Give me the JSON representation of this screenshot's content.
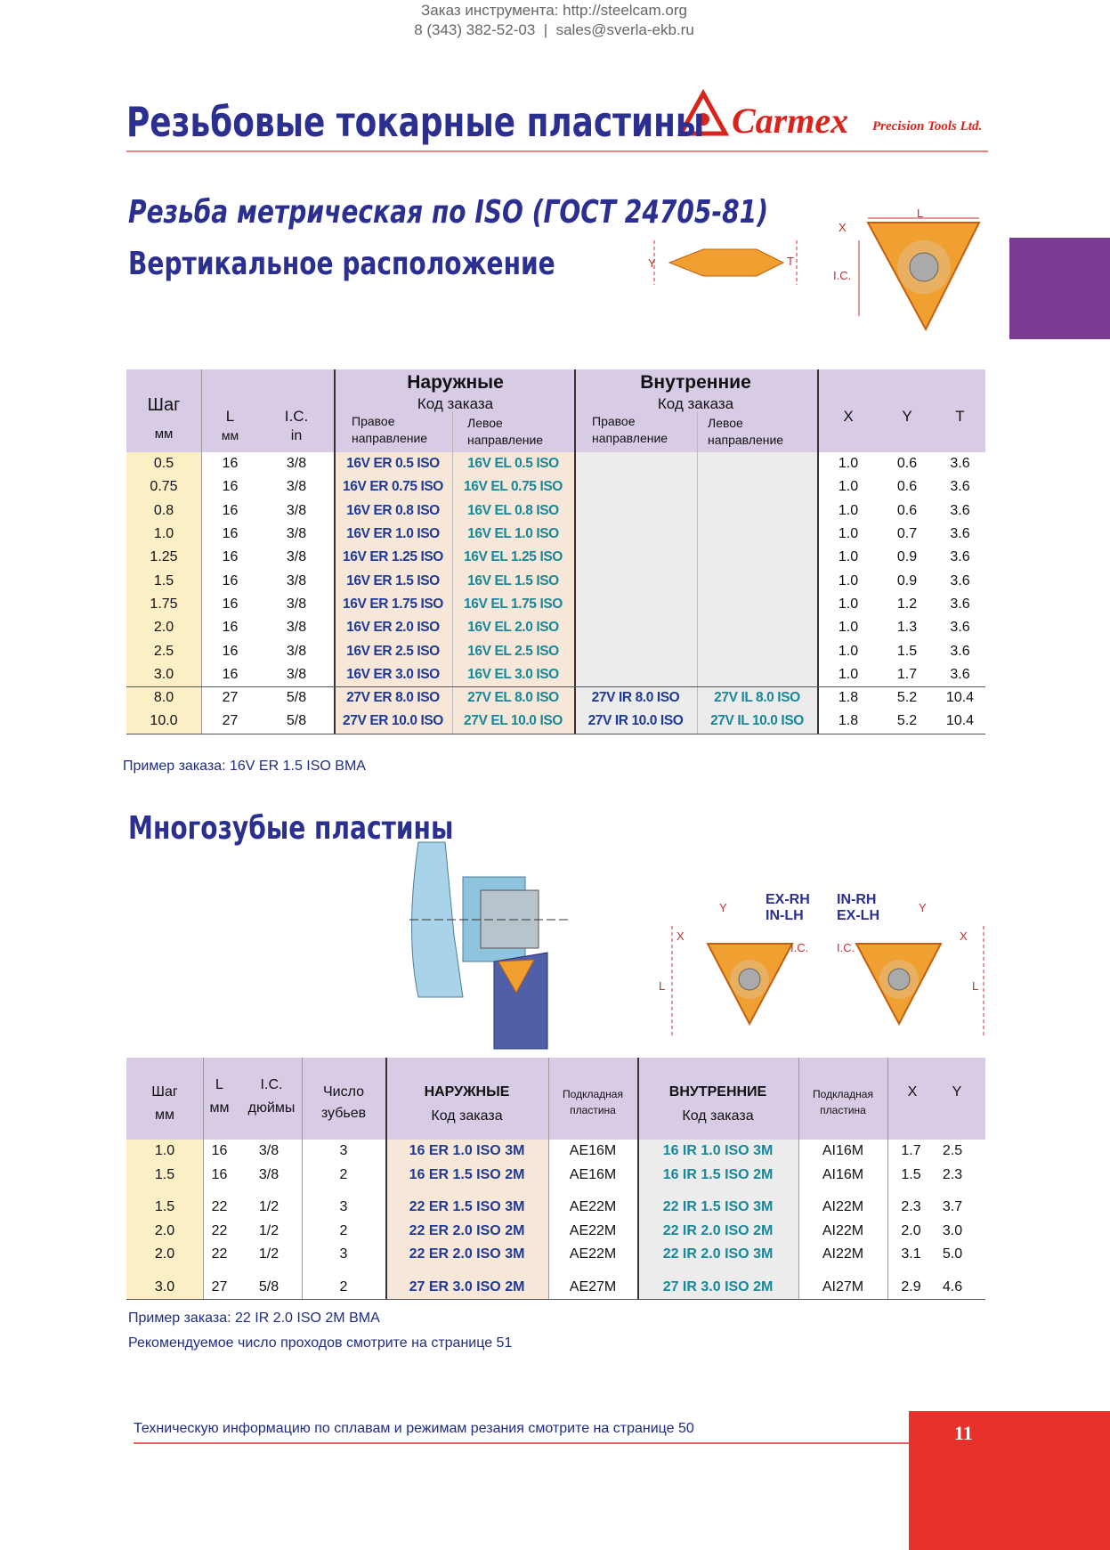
{
  "header": {
    "order_line1": "Заказ инструмента: http://steelcam.org",
    "order_line2": "8 (343) 382-52-03  |  sales@sverla-ekb.ru",
    "title": "Резьбовые токарные пластины",
    "brand": "Carmex",
    "brand_sub": "Precision Tools Ltd."
  },
  "section1": {
    "title": "Резьба метрическая по ISO (ГОСТ 24705-81)",
    "subtitle": "Вертикальное расположение",
    "diagram": {
      "x": "X",
      "l": "L",
      "y": "Y",
      "t": "T",
      "ic": "I.C."
    }
  },
  "table1": {
    "head": {
      "pitch": "Шаг",
      "pitch_unit": "мм",
      "l": "L",
      "l_unit": "мм",
      "ic": "I.C.",
      "ic_unit": "in",
      "ext": "Наружные",
      "ext_code": "Код заказа",
      "ext_right": "Правое",
      "ext_right2": "направление",
      "ext_left": "Левое",
      "ext_left2": "направление",
      "int": "Внутренние",
      "int_code": "Код заказа",
      "int_right": "Правое",
      "int_right2": "направление",
      "int_left": "Левое",
      "int_left2": "направление",
      "x": "X",
      "y": "Y",
      "t": "T"
    },
    "rows": [
      [
        "0.5",
        "16",
        "3/8",
        "16V ER 0.5 ISO",
        "16V EL 0.5 ISO",
        null,
        null,
        "1.0",
        "0.6",
        "3.6"
      ],
      [
        "0.75",
        "16",
        "3/8",
        "16V ER 0.75 ISO",
        "16V EL 0.75 ISO",
        null,
        null,
        "1.0",
        "0.6",
        "3.6"
      ],
      [
        "0.8",
        "16",
        "3/8",
        "16V ER 0.8 ISO",
        "16V EL 0.8 ISO",
        null,
        null,
        "1.0",
        "0.6",
        "3.6"
      ],
      [
        "1.0",
        "16",
        "3/8",
        "16V ER 1.0 ISO",
        "16V EL 1.0 ISO",
        null,
        null,
        "1.0",
        "0.7",
        "3.6"
      ],
      [
        "1.25",
        "16",
        "3/8",
        "16V ER 1.25 ISO",
        "16V EL 1.25 ISO",
        null,
        null,
        "1.0",
        "0.9",
        "3.6"
      ],
      [
        "1.5",
        "16",
        "3/8",
        "16V ER 1.5 ISO",
        "16V EL 1.5 ISO",
        null,
        null,
        "1.0",
        "0.9",
        "3.6"
      ],
      [
        "1.75",
        "16",
        "3/8",
        "16V ER 1.75 ISO",
        "16V EL 1.75 ISO",
        null,
        null,
        "1.0",
        "1.2",
        "3.6"
      ],
      [
        "2.0",
        "16",
        "3/8",
        "16V ER 2.0 ISO",
        "16V EL 2.0 ISO",
        null,
        null,
        "1.0",
        "1.3",
        "3.6"
      ],
      [
        "2.5",
        "16",
        "3/8",
        "16V ER 2.5 ISO",
        "16V EL 2.5 ISO",
        null,
        null,
        "1.0",
        "1.5",
        "3.6"
      ],
      [
        "3.0",
        "16",
        "3/8",
        "16V ER 3.0 ISO",
        "16V EL 3.0 ISO",
        null,
        null,
        "1.0",
        "1.7",
        "3.6"
      ],
      [
        "8.0",
        "27",
        "5/8",
        "27V ER 8.0 ISO",
        "27V EL 8.0 ISO",
        "27V IR 8.0 ISO",
        "27V IL 8.0 ISO",
        "1.8",
        "5.2",
        "10.4"
      ],
      [
        "10.0",
        "27",
        "5/8",
        "27V ER 10.0 ISO",
        "27V EL 10.0 ISO",
        "27V IR 10.0 ISO",
        "27V IL 10.0 ISO",
        "1.8",
        "5.2",
        "10.4"
      ]
    ]
  },
  "note1": "Пример заказа: 16V ER 1.5 ISO BMA",
  "section2": {
    "title": "Многозубые пластины",
    "diagram": {
      "ex_rh": "EX-RH",
      "in_lh": "IN-LH",
      "in_rh": "IN-RH",
      "ex_lh": "EX-LH",
      "y1": "Y",
      "x1": "X",
      "l1": "L",
      "ic1": "I.C.",
      "y2": "Y",
      "x2": "X",
      "l2": "L",
      "ic2": "I.C."
    }
  },
  "table2": {
    "head": {
      "pitch": "Шаг",
      "pitch_unit": "мм",
      "l": "L",
      "l_unit": "мм",
      "ic": "I.C.",
      "ic_unit": "дюймы",
      "teeth": "Число",
      "teeth2": "зубьев",
      "ext": "НАРУЖНЫЕ",
      "ext_code": "Код заказа",
      "shim1": "Подкладная",
      "shim1b": "пластина",
      "int": "ВНУТРЕННИЕ",
      "int_code": "Код заказа",
      "shim2": "Подкладная",
      "shim2b": "пластина",
      "x": "X",
      "y": "Y"
    },
    "groups": [
      [
        [
          "1.0",
          "16",
          "3/8",
          "3",
          "16 ER 1.0 ISO 3M",
          "AE16M",
          "16 IR 1.0 ISO 3M",
          "AI16M",
          "1.7",
          "2.5"
        ],
        [
          "1.5",
          "16",
          "3/8",
          "2",
          "16 ER 1.5 ISO 2M",
          "AE16M",
          "16 IR 1.5 ISO 2M",
          "AI16M",
          "1.5",
          "2.3"
        ]
      ],
      [
        [
          "1.5",
          "22",
          "1/2",
          "3",
          "22 ER 1.5 ISO 3M",
          "AE22M",
          "22 IR 1.5 ISO 3M",
          "AI22M",
          "2.3",
          "3.7"
        ],
        [
          "2.0",
          "22",
          "1/2",
          "2",
          "22 ER 2.0 ISO 2M",
          "AE22M",
          "22 IR 2.0 ISO 2M",
          "AI22M",
          "2.0",
          "3.0"
        ],
        [
          "2.0",
          "22",
          "1/2",
          "3",
          "22 ER 2.0 ISO 3M",
          "AE22M",
          "22 IR 2.0 ISO 3M",
          "AI22M",
          "3.1",
          "5.0"
        ]
      ],
      [
        [
          "3.0",
          "27",
          "5/8",
          "2",
          "27 ER 3.0 ISO 2M",
          "AE27M",
          "27 IR 3.0 ISO 2M",
          "AI27M",
          "2.9",
          "4.6"
        ]
      ]
    ]
  },
  "note2": "Пример заказа: 22 IR 2.0 ISO 2M BMA",
  "note3": "Рекомендуемое число проходов смотрите на странице 51",
  "footer": {
    "text": "Техническую информацию по сплавам и режимам резания смотрите на странице 50",
    "page": "11"
  }
}
